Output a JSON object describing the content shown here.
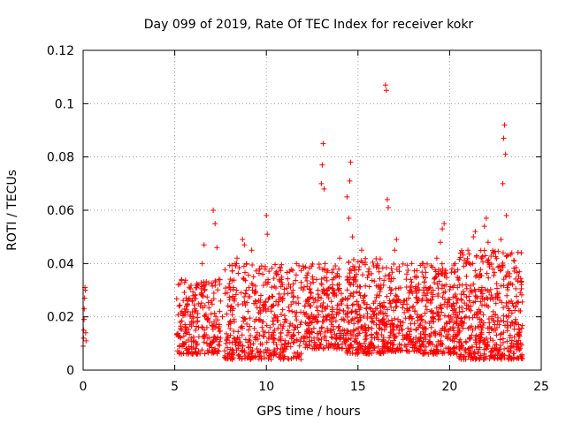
{
  "chart_data": {
    "type": "scatter",
    "title": "Day 099 of 2019, Rate Of TEC Index for receiver kokr",
    "xlabel": "GPS time / hours",
    "ylabel": "ROTI / TECUs",
    "xlim": [
      0,
      25
    ],
    "ylim": [
      0,
      0.12
    ],
    "xticks": [
      0,
      5,
      10,
      15,
      20,
      25
    ],
    "xtick_labels": [
      "0",
      "5",
      "10",
      "15",
      "20",
      "25"
    ],
    "yticks": [
      0,
      0.02,
      0.04,
      0.06,
      0.08,
      0.1,
      0.12
    ],
    "ytick_labels": [
      "0",
      "0.02",
      "0.04",
      "0.06",
      "0.08",
      "0.1",
      "0.12"
    ],
    "grid": true,
    "marker": "+",
    "color": "#ff0000",
    "series": [
      {
        "name": "ROTI",
        "points": [
          [
            0.0,
            0.009
          ],
          [
            0.02,
            0.012
          ],
          [
            0.03,
            0.015
          ],
          [
            0.05,
            0.019
          ],
          [
            0.06,
            0.023
          ],
          [
            0.08,
            0.027
          ],
          [
            0.1,
            0.031
          ],
          [
            0.12,
            0.03
          ],
          [
            0.14,
            0.014
          ],
          [
            0.16,
            0.011
          ],
          [
            5.2,
            0.013
          ],
          [
            5.3,
            0.018
          ],
          [
            5.4,
            0.022
          ],
          [
            5.5,
            0.01
          ],
          [
            5.6,
            0.016
          ],
          [
            5.7,
            0.026
          ],
          [
            5.8,
            0.008
          ],
          [
            5.9,
            0.012
          ],
          [
            6.0,
            0.02
          ],
          [
            6.1,
            0.028
          ],
          [
            6.2,
            0.031
          ],
          [
            6.3,
            0.016
          ],
          [
            6.4,
            0.024
          ],
          [
            6.5,
            0.04
          ],
          [
            6.6,
            0.047
          ],
          [
            6.7,
            0.032
          ],
          [
            6.8,
            0.012
          ],
          [
            6.9,
            0.018
          ],
          [
            7.0,
            0.026
          ],
          [
            7.1,
            0.06
          ],
          [
            7.2,
            0.055
          ],
          [
            7.3,
            0.046
          ],
          [
            7.4,
            0.034
          ],
          [
            7.5,
            0.012
          ],
          [
            7.6,
            0.02
          ],
          [
            7.8,
            0.01
          ],
          [
            8.0,
            0.018
          ],
          [
            8.1,
            0.024
          ],
          [
            8.2,
            0.031
          ],
          [
            8.3,
            0.04
          ],
          [
            8.4,
            0.042
          ],
          [
            8.5,
            0.012
          ],
          [
            8.6,
            0.016
          ],
          [
            8.7,
            0.049
          ],
          [
            8.8,
            0.047
          ],
          [
            8.9,
            0.03
          ],
          [
            9.0,
            0.022
          ],
          [
            9.1,
            0.011
          ],
          [
            9.2,
            0.045
          ],
          [
            9.3,
            0.035
          ],
          [
            9.4,
            0.026
          ],
          [
            9.5,
            0.014
          ],
          [
            9.6,
            0.019
          ],
          [
            9.7,
            0.028
          ],
          [
            9.8,
            0.036
          ],
          [
            9.9,
            0.024
          ],
          [
            10.0,
            0.058
          ],
          [
            10.05,
            0.051
          ],
          [
            10.1,
            0.033
          ],
          [
            10.2,
            0.016
          ],
          [
            10.3,
            0.024
          ],
          [
            10.4,
            0.012
          ],
          [
            10.6,
            0.02
          ],
          [
            10.8,
            0.014
          ],
          [
            11.0,
            0.018
          ],
          [
            11.2,
            0.01
          ],
          [
            11.4,
            0.022
          ],
          [
            11.6,
            0.016
          ],
          [
            11.9,
            0.012
          ],
          [
            12.0,
            0.039
          ],
          [
            12.1,
            0.024
          ],
          [
            12.2,
            0.015
          ],
          [
            12.4,
            0.02
          ],
          [
            12.6,
            0.012
          ],
          [
            12.8,
            0.026
          ],
          [
            13.0,
            0.07
          ],
          [
            13.05,
            0.077
          ],
          [
            13.1,
            0.085
          ],
          [
            13.15,
            0.068
          ],
          [
            13.2,
            0.04
          ],
          [
            13.3,
            0.03
          ],
          [
            13.5,
            0.015
          ],
          [
            13.6,
            0.022
          ],
          [
            13.8,
            0.035
          ],
          [
            14.0,
            0.042
          ],
          [
            14.1,
            0.019
          ],
          [
            14.2,
            0.012
          ],
          [
            14.4,
            0.065
          ],
          [
            14.5,
            0.057
          ],
          [
            14.55,
            0.071
          ],
          [
            14.6,
            0.078
          ],
          [
            14.7,
            0.05
          ],
          [
            14.8,
            0.035
          ],
          [
            14.9,
            0.022
          ],
          [
            15.0,
            0.018
          ],
          [
            15.2,
            0.045
          ],
          [
            15.3,
            0.026
          ],
          [
            15.4,
            0.014
          ],
          [
            15.6,
            0.038
          ],
          [
            15.7,
            0.02
          ],
          [
            15.9,
            0.012
          ],
          [
            16.0,
            0.017
          ],
          [
            16.2,
            0.025
          ],
          [
            16.4,
            0.011
          ],
          [
            16.5,
            0.107
          ],
          [
            16.55,
            0.105
          ],
          [
            16.6,
            0.064
          ],
          [
            16.65,
            0.061
          ],
          [
            16.8,
            0.03
          ],
          [
            17.0,
            0.045
          ],
          [
            17.1,
            0.049
          ],
          [
            17.3,
            0.018
          ],
          [
            17.5,
            0.026
          ],
          [
            17.7,
            0.012
          ],
          [
            17.9,
            0.02
          ],
          [
            18.1,
            0.035
          ],
          [
            18.3,
            0.016
          ],
          [
            18.5,
            0.04
          ],
          [
            18.7,
            0.024
          ],
          [
            18.9,
            0.013
          ],
          [
            19.1,
            0.03
          ],
          [
            19.3,
            0.042
          ],
          [
            19.5,
            0.048
          ],
          [
            19.6,
            0.053
          ],
          [
            19.7,
            0.055
          ],
          [
            19.8,
            0.032
          ],
          [
            20.0,
            0.018
          ],
          [
            20.2,
            0.025
          ],
          [
            20.3,
            0.04
          ],
          [
            20.5,
            0.014
          ],
          [
            20.7,
            0.022
          ],
          [
            20.9,
            0.032
          ],
          [
            21.0,
            0.045
          ],
          [
            21.1,
            0.016
          ],
          [
            21.3,
            0.05
          ],
          [
            21.4,
            0.052
          ],
          [
            21.5,
            0.027
          ],
          [
            21.7,
            0.012
          ],
          [
            21.9,
            0.054
          ],
          [
            22.0,
            0.057
          ],
          [
            22.1,
            0.048
          ],
          [
            22.3,
            0.02
          ],
          [
            22.5,
            0.015
          ],
          [
            22.7,
            0.039
          ],
          [
            22.8,
            0.049
          ],
          [
            22.9,
            0.07
          ],
          [
            22.95,
            0.087
          ],
          [
            23.0,
            0.092
          ],
          [
            23.05,
            0.081
          ],
          [
            23.1,
            0.058
          ],
          [
            23.2,
            0.032
          ],
          [
            23.4,
            0.018
          ],
          [
            23.6,
            0.024
          ],
          [
            23.8,
            0.014
          ],
          [
            23.9,
            0.033
          ]
        ]
      }
    ],
    "clusters": [
      {
        "x": [
          5.1,
          7.5
        ],
        "y": [
          0.006,
          0.034
        ],
        "n": 230
      },
      {
        "x": [
          7.7,
          11.9
        ],
        "y": [
          0.004,
          0.04
        ],
        "n": 420
      },
      {
        "x": [
          12.0,
          14.3
        ],
        "y": [
          0.008,
          0.04
        ],
        "n": 260
      },
      {
        "x": [
          14.3,
          16.4
        ],
        "y": [
          0.006,
          0.042
        ],
        "n": 280
      },
      {
        "x": [
          16.4,
          18.5
        ],
        "y": [
          0.007,
          0.04
        ],
        "n": 260
      },
      {
        "x": [
          18.5,
          20.5
        ],
        "y": [
          0.006,
          0.04
        ],
        "n": 260
      },
      {
        "x": [
          20.5,
          24.0
        ],
        "y": [
          0.004,
          0.045
        ],
        "n": 480
      }
    ]
  }
}
